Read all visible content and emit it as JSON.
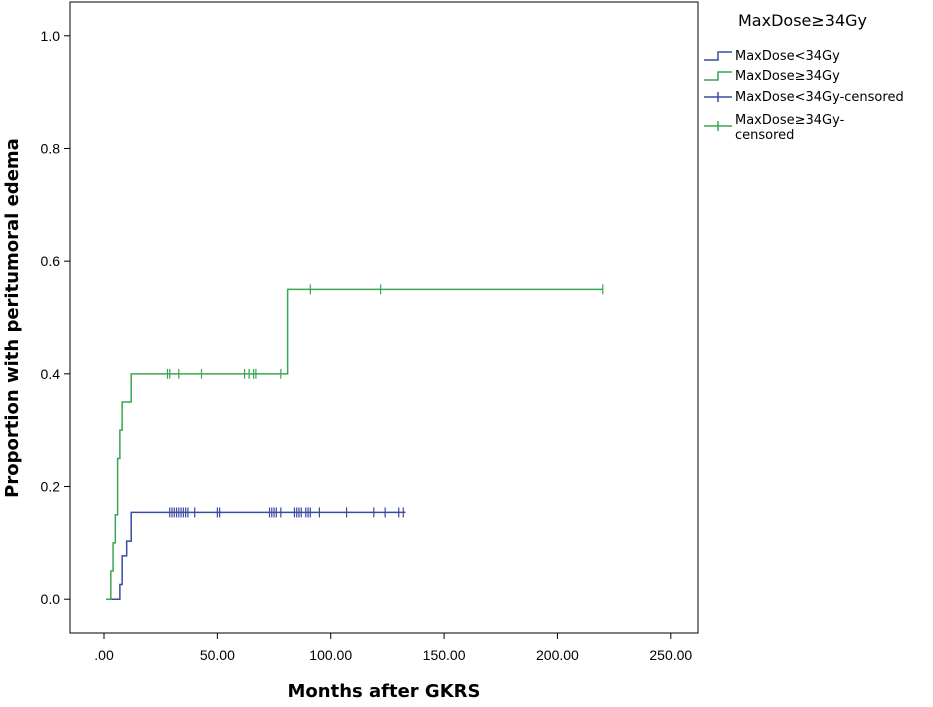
{
  "chart_data": {
    "type": "line",
    "xlabel": "Months after GKRS",
    "ylabel": "Proportion with peritumoral edema",
    "xlim": [
      -15,
      262
    ],
    "ylim": [
      -0.06,
      1.06
    ],
    "x_ticks": [
      ".00",
      "50.00",
      "100.00",
      "150.00",
      "200.00",
      "250.00"
    ],
    "x_tick_values": [
      0,
      50,
      100,
      150,
      200,
      250
    ],
    "y_ticks": [
      "0.0",
      "0.2",
      "0.4",
      "0.6",
      "0.8",
      "1.0"
    ],
    "y_tick_values": [
      0,
      0.2,
      0.4,
      0.6,
      0.8,
      1.0
    ],
    "grid": false,
    "legend": {
      "title": "MaxDose≥34Gy",
      "placement": "top-right",
      "entries": [
        "MaxDose<34Gy",
        "MaxDose≥34Gy",
        "MaxDose<34Gy-censored",
        "MaxDose≥34Gy-censored"
      ]
    },
    "series": [
      {
        "name": "MaxDose<34Gy",
        "color": "#3a4ba0",
        "steps": [
          [
            1,
            0
          ],
          [
            7,
            0.026
          ],
          [
            8,
            0.077
          ],
          [
            10,
            0.103
          ],
          [
            12,
            0.154
          ],
          [
            133,
            0.154
          ]
        ],
        "censored": [
          29,
          30,
          31,
          32,
          33,
          34,
          35,
          36,
          37,
          40,
          50,
          51,
          73,
          74,
          75,
          76,
          78,
          84,
          85,
          86,
          87,
          89,
          90,
          91,
          95,
          107,
          119,
          124,
          130,
          132
        ]
      },
      {
        "name": "MaxDose≥34Gy",
        "color": "#3aa650",
        "steps": [
          [
            1,
            0
          ],
          [
            3,
            0.05
          ],
          [
            4,
            0.1
          ],
          [
            5,
            0.15
          ],
          [
            6,
            0.25
          ],
          [
            7,
            0.3
          ],
          [
            8,
            0.35
          ],
          [
            12,
            0.4
          ],
          [
            81,
            0.55
          ],
          [
            220,
            0.55
          ]
        ],
        "censored": [
          28,
          29,
          33,
          43,
          62,
          64,
          66,
          67,
          78,
          91,
          122,
          220
        ]
      }
    ]
  }
}
